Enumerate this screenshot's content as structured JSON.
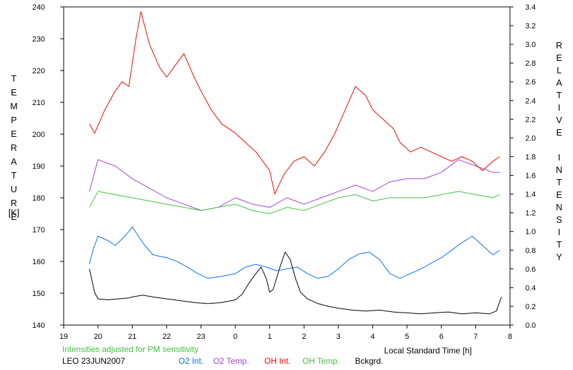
{
  "chart_data": {
    "type": "line",
    "left_axis_label": "TEMPERATURE",
    "left_axis_unit": "[K]",
    "right_axis_label": "RELATIVE INTENSITY",
    "xlabel": "Local Standard Time [h]",
    "note": "Intensities adjusted for PM sensitivity",
    "site_date": "LEO 23JUN2007",
    "grid": false,
    "xlim": [
      19,
      32
    ],
    "ylim_left": [
      140,
      240
    ],
    "ylim_right": [
      0.0,
      3.4
    ],
    "x_tick_values": [
      19,
      20,
      21,
      22,
      23,
      24,
      25,
      26,
      27,
      28,
      29,
      30,
      31,
      32
    ],
    "x_tick_labels": [
      "19",
      "20",
      "21",
      "22",
      "23",
      "0",
      "1",
      "2",
      "3",
      "4",
      "5",
      "6",
      "7",
      "8"
    ],
    "y_left_ticks": [
      "140",
      "150",
      "160",
      "170",
      "180",
      "190",
      "200",
      "210",
      "220",
      "230",
      "240"
    ],
    "y_right_ticks": [
      "0.0",
      "0.2",
      "0.4",
      "0.6",
      "0.8",
      "1.0",
      "1.2",
      "1.4",
      "1.6",
      "1.8",
      "2.0",
      "2.2",
      "2.4",
      "2.6",
      "2.8",
      "3.0",
      "3.2",
      "3.4"
    ],
    "series": [
      {
        "name": "O2 Int.",
        "axis": "right",
        "color": "#0070ff",
        "x": [
          19.75,
          19.85,
          20.0,
          20.3,
          20.5,
          20.7,
          20.9,
          21.0,
          21.3,
          21.6,
          22.0,
          22.3,
          22.6,
          22.9,
          23.2,
          23.6,
          24.0,
          24.3,
          24.6,
          24.9,
          25.2,
          25.5,
          25.8,
          26.1,
          26.4,
          26.7,
          27.0,
          27.3,
          27.6,
          27.9,
          28.2,
          28.5,
          28.8,
          29.1,
          29.4,
          29.7,
          30.0,
          30.3,
          30.6,
          30.9,
          31.2,
          31.5,
          31.7
        ],
        "y": [
          0.65,
          0.8,
          0.95,
          0.9,
          0.85,
          0.92,
          1.0,
          1.05,
          0.88,
          0.75,
          0.72,
          0.68,
          0.62,
          0.55,
          0.5,
          0.52,
          0.55,
          0.62,
          0.65,
          0.62,
          0.58,
          0.6,
          0.62,
          0.55,
          0.5,
          0.52,
          0.6,
          0.7,
          0.76,
          0.78,
          0.7,
          0.55,
          0.5,
          0.55,
          0.6,
          0.66,
          0.72,
          0.8,
          0.88,
          0.95,
          0.85,
          0.75,
          0.8
        ]
      },
      {
        "name": "O2 Temp.",
        "axis": "left",
        "color": "#a040e0",
        "x": [
          19.75,
          20.0,
          20.5,
          21.0,
          21.5,
          22.0,
          22.5,
          23.0,
          23.5,
          24.0,
          24.5,
          25.0,
          25.5,
          26.0,
          26.5,
          27.0,
          27.5,
          28.0,
          28.5,
          29.0,
          29.5,
          30.0,
          30.5,
          31.0,
          31.5,
          31.7
        ],
        "y": [
          182,
          192,
          190,
          186,
          183,
          180,
          178,
          176,
          177,
          180,
          178,
          177,
          180,
          178,
          180,
          182,
          184,
          182,
          185,
          186,
          186,
          188,
          192,
          190,
          188,
          188
        ]
      },
      {
        "name": "OH Int.",
        "axis": "right",
        "color": "#ff0000",
        "x": [
          19.75,
          19.9,
          20.2,
          20.5,
          20.7,
          20.9,
          21.0,
          21.1,
          21.25,
          21.5,
          21.8,
          22.0,
          22.3,
          22.5,
          22.8,
          23.0,
          23.3,
          23.6,
          24.0,
          24.3,
          24.6,
          24.8,
          25.0,
          25.15,
          25.4,
          25.7,
          26.0,
          26.3,
          26.6,
          26.9,
          27.2,
          27.5,
          27.8,
          28.0,
          28.3,
          28.6,
          28.8,
          29.1,
          29.4,
          29.7,
          30.0,
          30.3,
          30.6,
          30.9,
          31.2,
          31.5,
          31.7
        ],
        "y": [
          2.15,
          2.05,
          2.3,
          2.5,
          2.6,
          2.55,
          2.8,
          3.05,
          3.35,
          3.0,
          2.75,
          2.65,
          2.8,
          2.9,
          2.65,
          2.5,
          2.3,
          2.15,
          2.05,
          1.95,
          1.85,
          1.75,
          1.65,
          1.4,
          1.6,
          1.75,
          1.8,
          1.7,
          1.85,
          2.05,
          2.3,
          2.55,
          2.45,
          2.3,
          2.2,
          2.1,
          1.95,
          1.85,
          1.9,
          1.85,
          1.8,
          1.75,
          1.8,
          1.75,
          1.65,
          1.75,
          1.8
        ]
      },
      {
        "name": "OH Temp.",
        "axis": "left",
        "color": "#40c040",
        "x": [
          19.75,
          20.0,
          20.5,
          21.0,
          21.5,
          22.0,
          22.5,
          23.0,
          23.5,
          24.0,
          24.5,
          25.0,
          25.5,
          26.0,
          26.5,
          27.0,
          27.5,
          28.0,
          28.5,
          29.0,
          29.5,
          30.0,
          30.5,
          31.0,
          31.5,
          31.7
        ],
        "y": [
          177,
          182,
          181,
          180,
          179,
          178,
          177,
          176,
          177,
          178,
          176,
          175,
          177,
          176,
          178,
          180,
          181,
          179,
          180,
          180,
          180,
          181,
          182,
          181,
          180,
          181
        ]
      },
      {
        "name": "Bckgrd.",
        "axis": "right",
        "color": "#000000",
        "x": [
          19.75,
          19.9,
          20.0,
          20.3,
          20.6,
          20.9,
          21.0,
          21.3,
          21.6,
          22.0,
          22.4,
          22.8,
          23.2,
          23.6,
          24.0,
          24.2,
          24.4,
          24.6,
          24.75,
          24.9,
          25.0,
          25.1,
          25.2,
          25.3,
          25.45,
          25.6,
          25.75,
          25.9,
          26.1,
          26.4,
          26.7,
          27.0,
          27.4,
          27.8,
          28.2,
          28.6,
          29.0,
          29.4,
          29.8,
          30.2,
          30.6,
          31.0,
          31.4,
          31.6,
          31.75
        ],
        "y": [
          0.6,
          0.35,
          0.28,
          0.27,
          0.28,
          0.29,
          0.3,
          0.32,
          0.3,
          0.28,
          0.26,
          0.24,
          0.23,
          0.24,
          0.27,
          0.33,
          0.45,
          0.55,
          0.62,
          0.5,
          0.35,
          0.38,
          0.5,
          0.62,
          0.78,
          0.7,
          0.5,
          0.35,
          0.28,
          0.23,
          0.2,
          0.18,
          0.16,
          0.15,
          0.16,
          0.14,
          0.13,
          0.12,
          0.13,
          0.14,
          0.12,
          0.13,
          0.12,
          0.15,
          0.3
        ]
      }
    ]
  }
}
